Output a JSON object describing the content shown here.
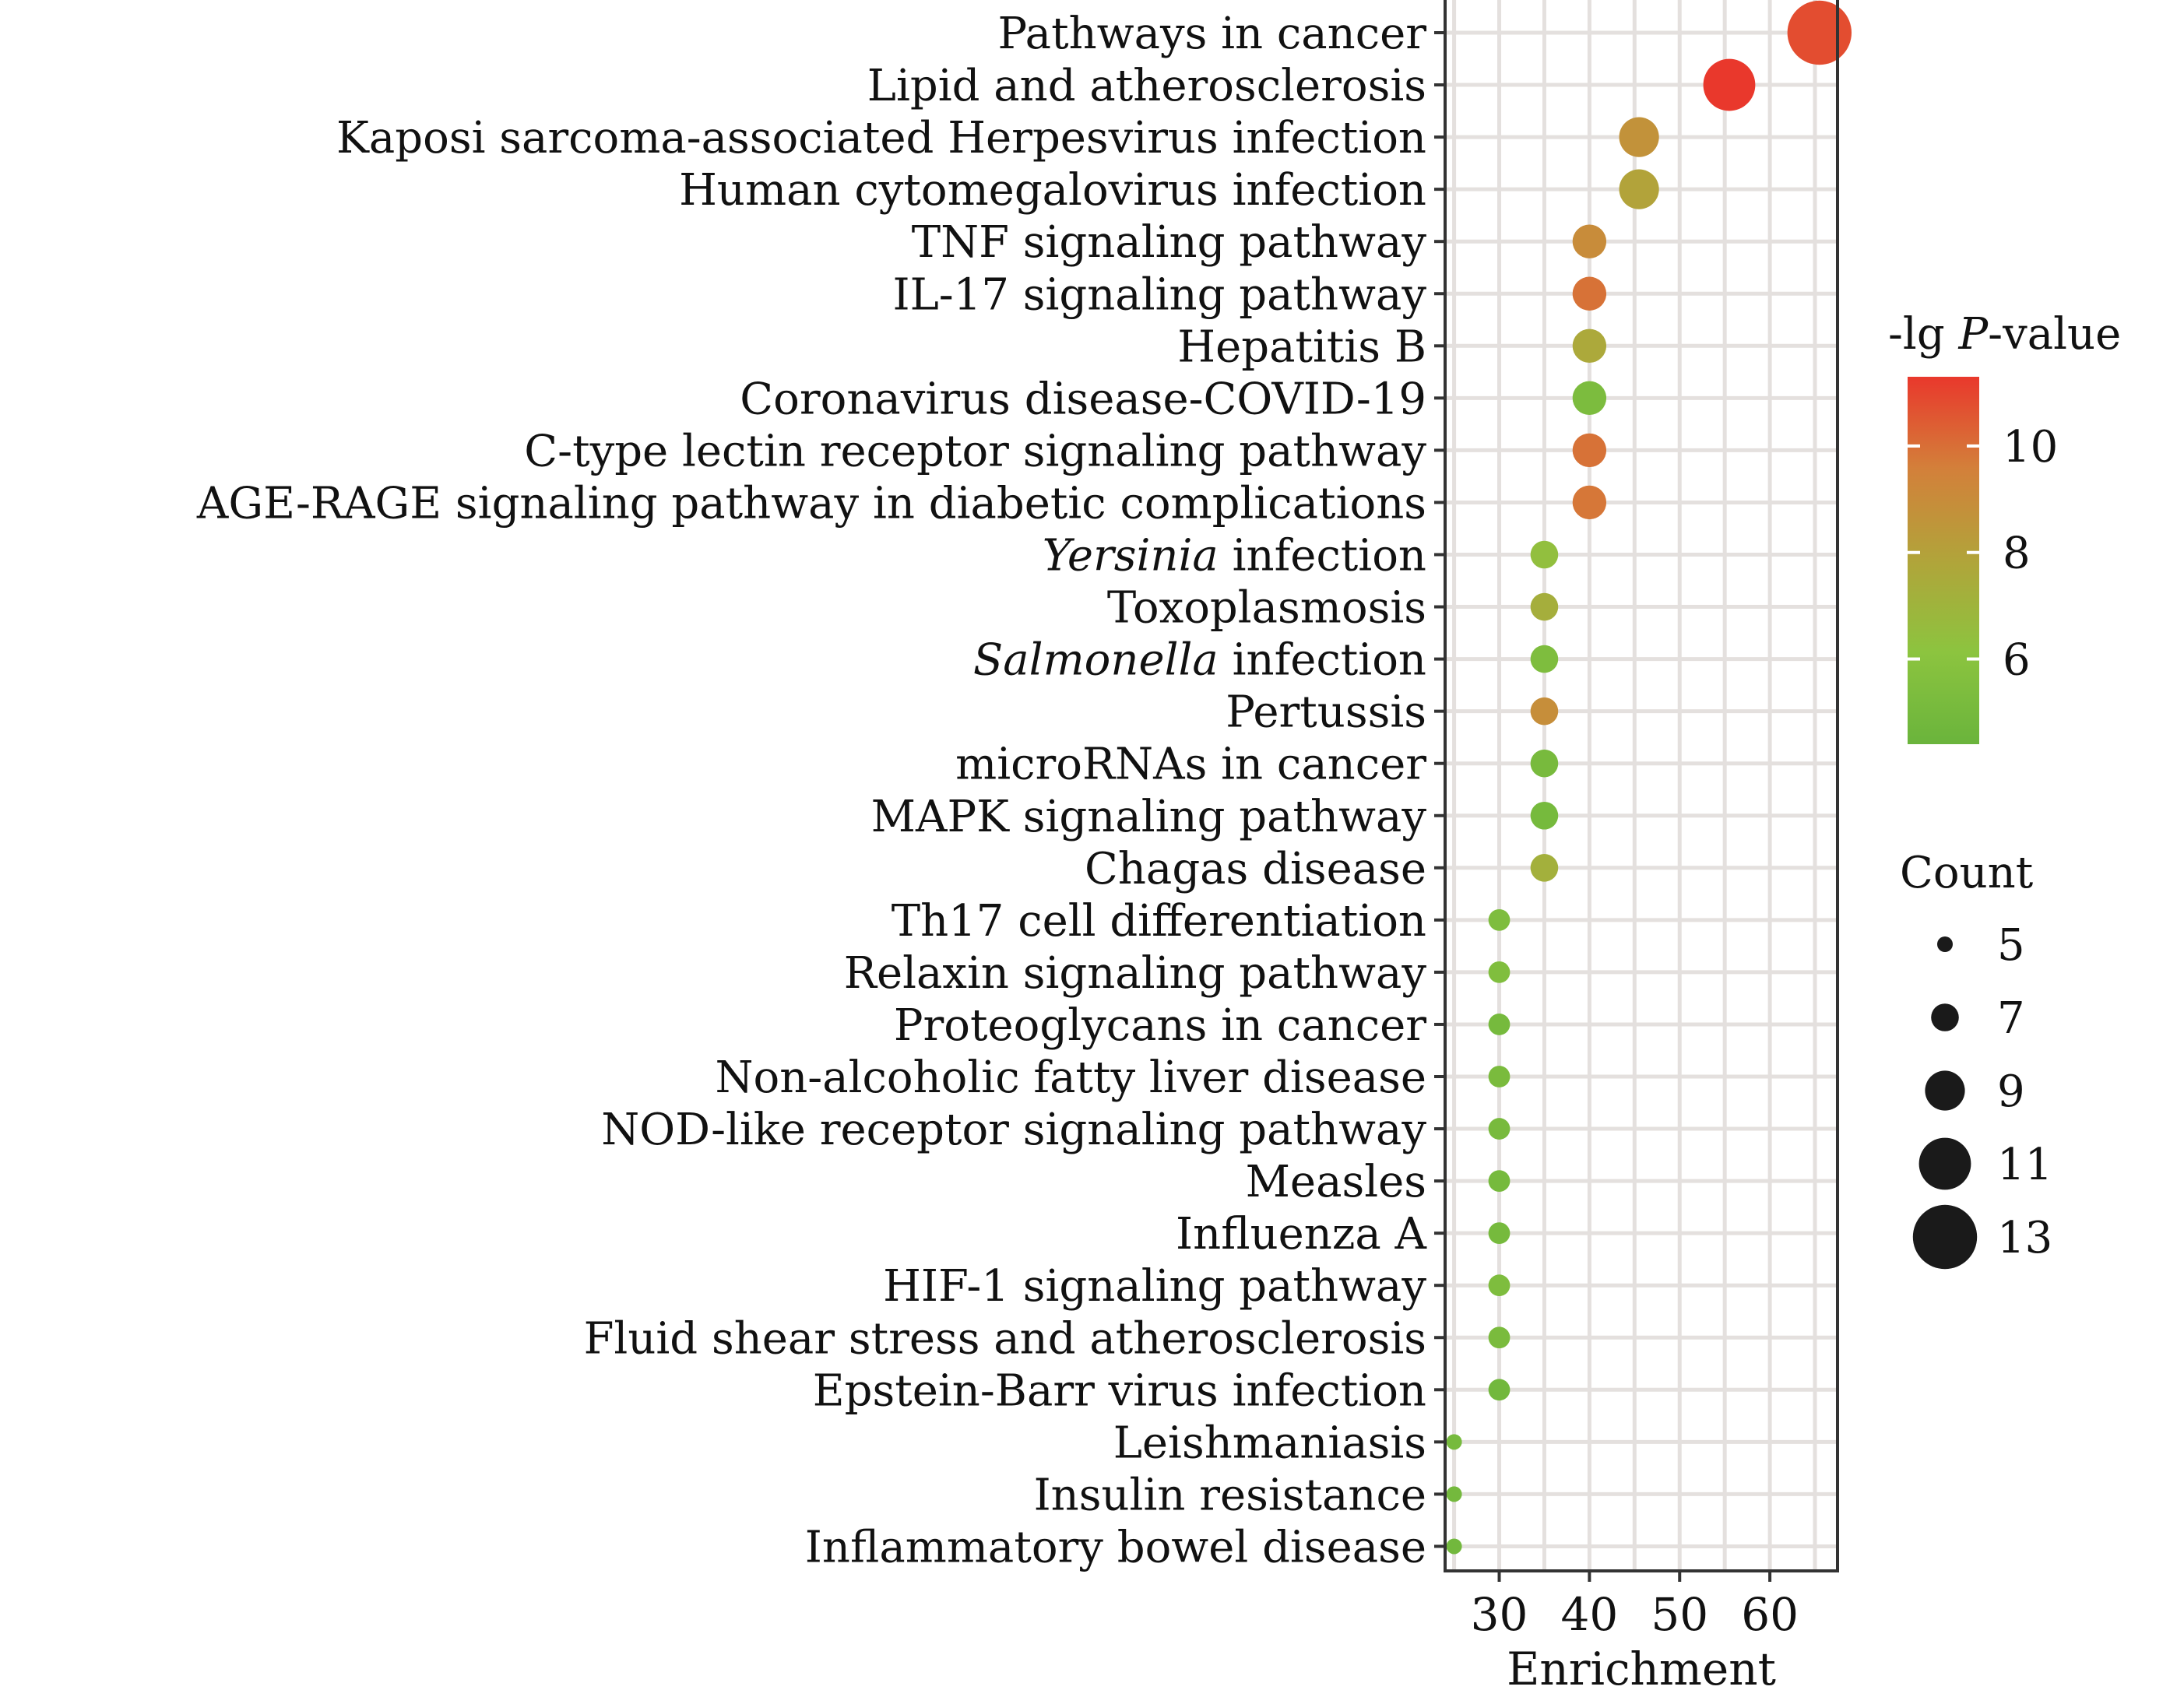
{
  "chart_data": {
    "type": "scatter",
    "xlabel": "Enrichment",
    "x_ticks": [
      30,
      40,
      50,
      60
    ],
    "xlim": [
      24,
      67.5
    ],
    "color_legend": {
      "title_prefix": "-lg",
      "title_italic": "P",
      "title_suffix": "-value",
      "ticks": [
        6,
        8,
        10
      ],
      "range": [
        4.4,
        11.3
      ],
      "colors": [
        "#6ab43c",
        "#8cc43f",
        "#b1a43a",
        "#d3803a",
        "#e9382c"
      ]
    },
    "size_legend": {
      "title": "Count",
      "values": [
        5,
        7,
        9,
        11,
        13
      ]
    },
    "categories": [
      {
        "prefix": "",
        "italic": "",
        "suffix": "Pathways in cancer",
        "enrichment": 65.5,
        "count": 13,
        "neglogp": 10.8
      },
      {
        "prefix": "",
        "italic": "",
        "suffix": "Lipid and atherosclerosis",
        "enrichment": 55.5,
        "count": 11,
        "neglogp": 11.3
      },
      {
        "prefix": "",
        "italic": "",
        "suffix": "Kaposi sarcoma-associated Herpesvirus infection",
        "enrichment": 45.5,
        "count": 9,
        "neglogp": 8.7
      },
      {
        "prefix": "",
        "italic": "",
        "suffix": "Human cytomegalovirus infection",
        "enrichment": 45.5,
        "count": 9,
        "neglogp": 7.9
      },
      {
        "prefix": "",
        "italic": "",
        "suffix": "TNF signaling pathway",
        "enrichment": 40,
        "count": 8,
        "neglogp": 9.0
      },
      {
        "prefix": "",
        "italic": "",
        "suffix": "IL-17 signaling pathway",
        "enrichment": 40,
        "count": 8,
        "neglogp": 9.9
      },
      {
        "prefix": "",
        "italic": "",
        "suffix": "Hepatitis B",
        "enrichment": 40,
        "count": 8,
        "neglogp": 7.6
      },
      {
        "prefix": "",
        "italic": "",
        "suffix": "Coronavirus disease-COVID-19",
        "enrichment": 40,
        "count": 8,
        "neglogp": 5.3
      },
      {
        "prefix": "",
        "italic": "",
        "suffix": "C-type lectin receptor signaling pathway",
        "enrichment": 40,
        "count": 8,
        "neglogp": 9.9
      },
      {
        "prefix": "",
        "italic": "",
        "suffix": "AGE-RAGE signaling pathway in diabetic complications",
        "enrichment": 40,
        "count": 8,
        "neglogp": 9.8
      },
      {
        "prefix": "",
        "italic": "Yersinia",
        "suffix": " infection",
        "enrichment": 35,
        "count": 7,
        "neglogp": 6.4
      },
      {
        "prefix": "",
        "italic": "",
        "suffix": "Toxoplasmosis",
        "enrichment": 35,
        "count": 7,
        "neglogp": 7.3
      },
      {
        "prefix": "",
        "italic": "Salmonella",
        "suffix": " infection",
        "enrichment": 35,
        "count": 7,
        "neglogp": 5.4
      },
      {
        "prefix": "",
        "italic": "",
        "suffix": "Pertussis",
        "enrichment": 35,
        "count": 7,
        "neglogp": 8.9
      },
      {
        "prefix": "",
        "italic": "",
        "suffix": "microRNAs in cancer",
        "enrichment": 35,
        "count": 7,
        "neglogp": 5.1
      },
      {
        "prefix": "",
        "italic": "",
        "suffix": "MAPK signaling pathway",
        "enrichment": 35,
        "count": 7,
        "neglogp": 5.0
      },
      {
        "prefix": "",
        "italic": "",
        "suffix": "Chagas disease",
        "enrichment": 35,
        "count": 7,
        "neglogp": 7.2
      },
      {
        "prefix": "",
        "italic": "",
        "suffix": "Th17 cell differentiation",
        "enrichment": 30,
        "count": 6,
        "neglogp": 5.4
      },
      {
        "prefix": "",
        "italic": "",
        "suffix": "Relaxin signaling pathway",
        "enrichment": 30,
        "count": 6,
        "neglogp": 5.5
      },
      {
        "prefix": "",
        "italic": "",
        "suffix": "Proteoglycans in cancer",
        "enrichment": 30,
        "count": 6,
        "neglogp": 5.0
      },
      {
        "prefix": "",
        "italic": "",
        "suffix": "Non-alcoholic fatty liver disease",
        "enrichment": 30,
        "count": 6,
        "neglogp": 5.2
      },
      {
        "prefix": "",
        "italic": "",
        "suffix": "NOD-like receptor signaling pathway",
        "enrichment": 30,
        "count": 6,
        "neglogp": 5.1
      },
      {
        "prefix": "",
        "italic": "",
        "suffix": "Measles",
        "enrichment": 30,
        "count": 6,
        "neglogp": 5.0
      },
      {
        "prefix": "",
        "italic": "",
        "suffix": "Influenza A",
        "enrichment": 30,
        "count": 6,
        "neglogp": 5.0
      },
      {
        "prefix": "",
        "italic": "",
        "suffix": "HIF-1 signaling pathway",
        "enrichment": 30,
        "count": 6,
        "neglogp": 5.4
      },
      {
        "prefix": "",
        "italic": "",
        "suffix": "Fluid shear stress and atherosclerosis",
        "enrichment": 30,
        "count": 6,
        "neglogp": 5.2
      },
      {
        "prefix": "",
        "italic": "",
        "suffix": "Epstein-Barr virus infection",
        "enrichment": 30,
        "count": 6,
        "neglogp": 4.8
      },
      {
        "prefix": "",
        "italic": "",
        "suffix": "Leishmaniasis",
        "enrichment": 25,
        "count": 5,
        "neglogp": 5.0
      },
      {
        "prefix": "",
        "italic": "",
        "suffix": "Insulin resistance",
        "enrichment": 25,
        "count": 5,
        "neglogp": 4.9
      },
      {
        "prefix": "",
        "italic": "",
        "suffix": "Inflammatory bowel disease",
        "enrichment": 25,
        "count": 5,
        "neglogp": 4.8
      }
    ]
  }
}
